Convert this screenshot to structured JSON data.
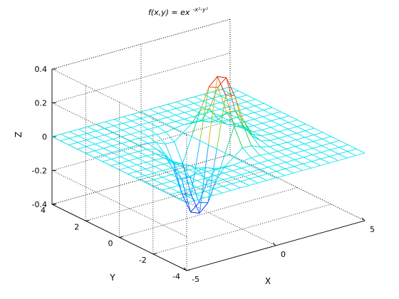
{
  "chart_data": {
    "type": "surface-mesh",
    "title": "f(x,y) = ex",
    "title_exponent": "-x²-y²",
    "xlabel": "X",
    "ylabel": "Y",
    "zlabel": "Z",
    "xlim": [
      -5,
      5
    ],
    "ylim": [
      -4,
      4
    ],
    "zlim": [
      -0.4,
      0.4
    ],
    "x_ticks": [
      "-5",
      "0",
      "5"
    ],
    "y_ticks": [
      "-4",
      "-2",
      "0",
      "2",
      "4"
    ],
    "z_ticks": [
      "-0.4",
      "-0.2",
      "0",
      "0.2",
      "0.4"
    ],
    "grid": true,
    "function": "z = x * exp(-x^2 - y^2)",
    "mesh": {
      "x_from": -5,
      "x_to": 5,
      "x_step": 0.5,
      "y_from": -4,
      "y_to": 4,
      "y_step": 0.5
    },
    "peak": {
      "x": 0.7,
      "y": 0,
      "z": 0.43
    },
    "trough": {
      "x": -0.7,
      "y": 0,
      "z": -0.43
    },
    "colors": {
      "mesh_base": "#00e5ee",
      "edges": "#000000",
      "grid": "#000000",
      "background": "#ffffff"
    }
  }
}
